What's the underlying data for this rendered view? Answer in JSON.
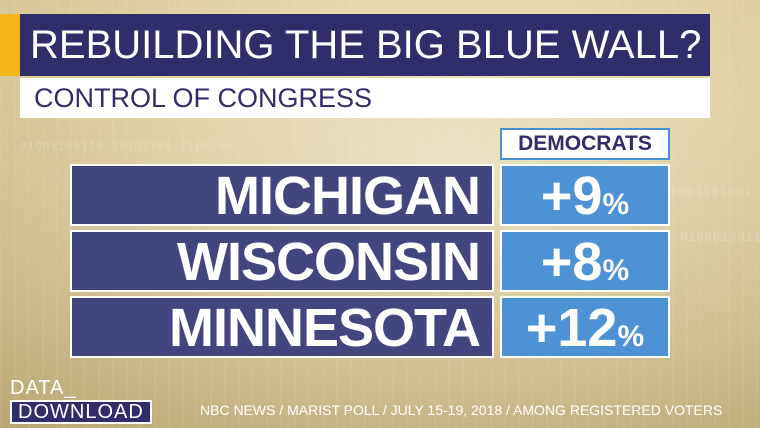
{
  "title": "REBUILDING THE BIG BLUE WALL?",
  "subtitle": "CONTROL OF CONGRESS",
  "column_header": "DEMOCRATS",
  "rows": [
    {
      "state": "MICHIGAN",
      "value": "+9",
      "unit": "%"
    },
    {
      "state": "WISCONSIN",
      "value": "+8",
      "unit": "%"
    },
    {
      "state": "MINNESOTA",
      "value": "+12",
      "unit": "%"
    }
  ],
  "logo": {
    "line1": "DATA_",
    "line2": "DOWNLOAD"
  },
  "source": "NBC NEWS / MARIST POLL / JULY 15-19, 2018 / AMONG REGISTERED VOTERS",
  "colors": {
    "navy": "#2f2e6b",
    "state_bg": "#43467e",
    "value_bg": "#4e92d6",
    "accent": "#f2b51a"
  }
}
